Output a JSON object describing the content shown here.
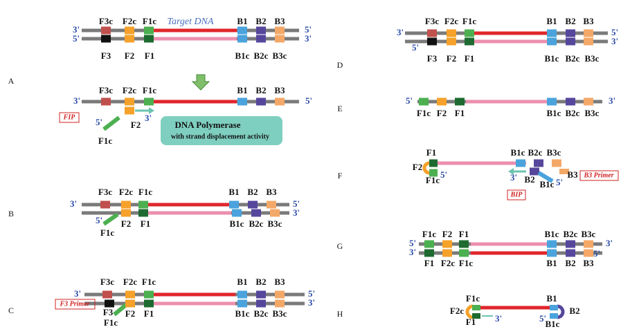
{
  "panels": [
    {
      "letter": "A",
      "labels": [
        "Target DNA",
        "F3c",
        "F2c",
        "F1c",
        "B1",
        "B2",
        "B3",
        "3'",
        "5'",
        "5'",
        "3'",
        "F3",
        "F2",
        "F1",
        "B1c",
        "B2c",
        "B3c",
        "F3c",
        "F2c",
        "F1c",
        "B1",
        "B2",
        "B3",
        "3'",
        "5'",
        "FIP",
        "5'",
        "F2",
        "3'",
        "F1c",
        "DNA Polymerase",
        "with strand displacement activity"
      ]
    },
    {
      "letter": "B",
      "labels": [
        "F3c",
        "F2c",
        "F1c",
        "B1",
        "B2",
        "B3",
        "3'",
        "5'",
        "3'",
        "5'",
        "F2",
        "F1",
        "F1c",
        "B1c",
        "B2c",
        "B3c"
      ]
    },
    {
      "letter": "C",
      "labels": [
        "F3c",
        "F2c",
        "F1c",
        "B1",
        "B2",
        "B3",
        "3'",
        "5'",
        "3'",
        "F3 Primer",
        "F3",
        "F1c",
        "F2",
        "F1",
        "B1c",
        "B2c",
        "B3c"
      ]
    },
    {
      "letter": "D",
      "labels": [
        "F3c",
        "F2c",
        "F1c",
        "B1",
        "B2",
        "B3",
        "3'",
        "5'",
        "5'",
        "3'",
        "F3",
        "F2",
        "F1",
        "B1c",
        "B2c",
        "B3c"
      ]
    },
    {
      "letter": "E",
      "labels": [
        "5'",
        "3'",
        "F1c",
        "F2",
        "F1",
        "B1c",
        "B2c",
        "B3c"
      ]
    },
    {
      "letter": "F",
      "labels": [
        "F2",
        "F1",
        "F1c",
        "5'",
        "B1c",
        "B2c",
        "B3c",
        "3'",
        "B2",
        "B1c",
        "5'",
        "B3",
        "B3 Primer",
        "BIP"
      ]
    },
    {
      "letter": "G",
      "labels": [
        "F1c",
        "F2",
        "F1",
        "B1c",
        "B2c",
        "B3c",
        "F1",
        "F2c",
        "F1c",
        "B1",
        "B2",
        "B3",
        "5'",
        "3'",
        "3'",
        "5'"
      ]
    },
    {
      "letter": "H",
      "labels": [
        "F1c",
        "B1",
        "F2c",
        "F1",
        "3'",
        "5'",
        "B1c",
        "B2"
      ]
    }
  ]
}
